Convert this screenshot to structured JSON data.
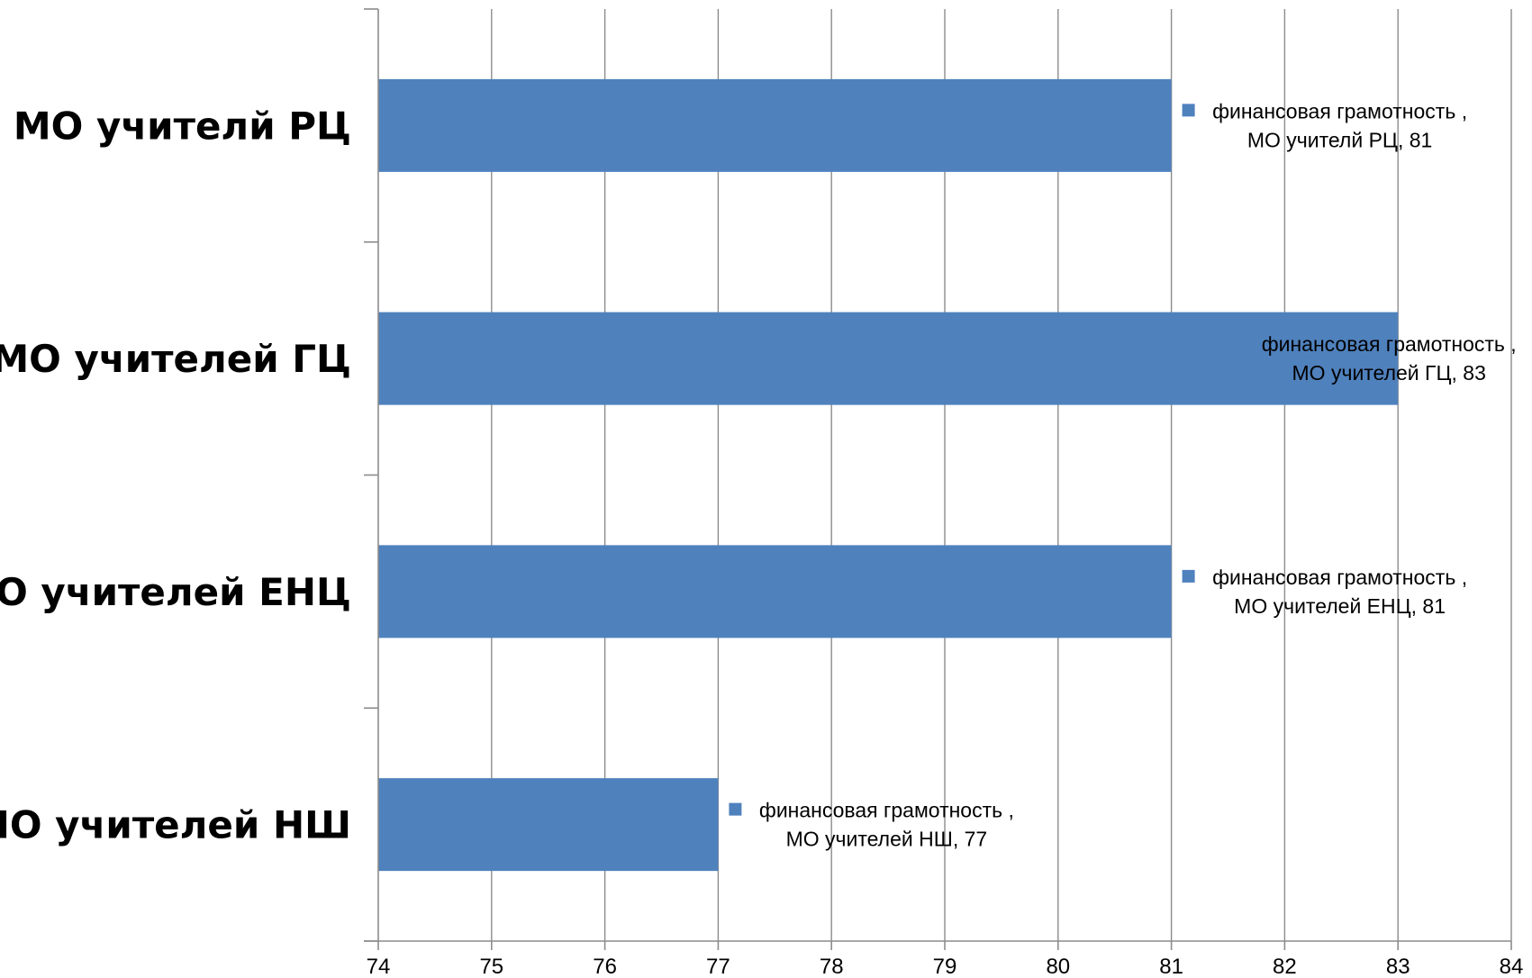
{
  "chart_data": {
    "type": "bar",
    "orientation": "horizontal",
    "categories": [
      "МО учителей НШ",
      "МО учителей ЕНЦ",
      "МО учителей ГЦ",
      "МО учителй РЦ"
    ],
    "series": [
      {
        "name": "финансовая грамотность ,",
        "values": [
          77,
          81,
          83,
          81
        ],
        "color": "#4F81BD"
      }
    ],
    "data_labels": [
      {
        "line1": "финансовая грамотность ,",
        "line2": "МО учителей НШ, 77",
        "show_key": true
      },
      {
        "line1": "финансовая грамотность ,",
        "line2": "МО учителей ЕНЦ, 81",
        "show_key": true
      },
      {
        "line1": "финансовая грамотность ,",
        "line2": "МО учителей ГЦ, 83",
        "show_key": false
      },
      {
        "line1": "финансовая грамотность ,",
        "line2": "МО учителй РЦ, 81",
        "show_key": true
      }
    ],
    "xlim": [
      74,
      84
    ],
    "xticks": [
      "74",
      "75",
      "76",
      "77",
      "78",
      "79",
      "80",
      "81",
      "82",
      "83",
      "84"
    ],
    "grid": "vertical",
    "legend": "none",
    "colors": {
      "bar": "#4F81BD",
      "grid": "#8C8C8C",
      "axis": "#8C8C8C",
      "text": "#000000"
    }
  }
}
